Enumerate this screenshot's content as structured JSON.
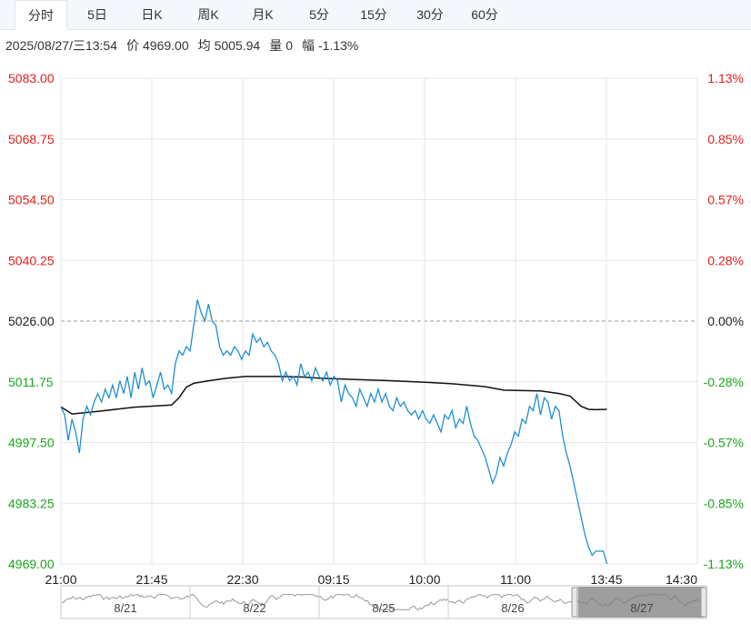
{
  "tabs": [
    {
      "label": "分时",
      "active": true
    },
    {
      "label": "5日",
      "active": false
    },
    {
      "label": "日K",
      "active": false
    },
    {
      "label": "周K",
      "active": false
    },
    {
      "label": "月K",
      "active": false
    },
    {
      "label": "5分",
      "active": false
    },
    {
      "label": "15分",
      "active": false
    },
    {
      "label": "30分",
      "active": false
    },
    {
      "label": "60分",
      "active": false
    }
  ],
  "info": {
    "datetime": "2025/08/27/三13:54",
    "price_label": "价",
    "price": "4969.00",
    "avg_label": "均",
    "avg": "5005.94",
    "vol_label": "量",
    "vol": "0",
    "chg_label": "幅",
    "chg": "-1.13%"
  },
  "colors": {
    "up": "#e0201c",
    "down": "#1aa51a",
    "neutral": "#222222",
    "price_line": "#1f8fd0",
    "avg_line": "#111111",
    "grid": "#e6e6e6"
  },
  "chart_data": {
    "type": "line",
    "prev_close": 5026.0,
    "ylim": [
      4969.0,
      5083.0
    ],
    "y_ticks_left": [
      "5083.00",
      "5068.75",
      "5054.50",
      "5040.25",
      "5026.00",
      "5011.75",
      "4997.50",
      "4983.25",
      "4969.00"
    ],
    "y_ticks_right": [
      "1.13%",
      "0.85%",
      "0.57%",
      "0.28%",
      "0.00%",
      "-0.28%",
      "-0.57%",
      "-0.85%",
      "-1.13%"
    ],
    "x_ticks": [
      "21:00",
      "21:45",
      "22:30",
      "09:15",
      "10:00",
      "11:00",
      "13:45",
      "14:30"
    ],
    "x_total": 345,
    "price_series": [
      [
        0,
        5005.9
      ],
      [
        2,
        5004
      ],
      [
        4,
        4998
      ],
      [
        6,
        5003
      ],
      [
        8,
        5000
      ],
      [
        10,
        4995
      ],
      [
        12,
        5003
      ],
      [
        14,
        5006
      ],
      [
        16,
        5004
      ],
      [
        18,
        5007
      ],
      [
        20,
        5009
      ],
      [
        22,
        5007
      ],
      [
        24,
        5010
      ],
      [
        26,
        5008
      ],
      [
        28,
        5011
      ],
      [
        30,
        5008
      ],
      [
        32,
        5012
      ],
      [
        34,
        5009
      ],
      [
        36,
        5013
      ],
      [
        38,
        5008
      ],
      [
        40,
        5014
      ],
      [
        42,
        5010
      ],
      [
        44,
        5015
      ],
      [
        46,
        5011
      ],
      [
        48,
        5012
      ],
      [
        50,
        5008
      ],
      [
        52,
        5011
      ],
      [
        54,
        5014
      ],
      [
        56,
        5010
      ],
      [
        58,
        5011
      ],
      [
        60,
        5009
      ],
      [
        62,
        5016
      ],
      [
        64,
        5019
      ],
      [
        66,
        5018
      ],
      [
        68,
        5020
      ],
      [
        70,
        5019
      ],
      [
        72,
        5025
      ],
      [
        74,
        5031
      ],
      [
        76,
        5028
      ],
      [
        78,
        5026
      ],
      [
        80,
        5030
      ],
      [
        82,
        5026
      ],
      [
        84,
        5025
      ],
      [
        86,
        5020
      ],
      [
        88,
        5018
      ],
      [
        90,
        5019
      ],
      [
        92,
        5018
      ],
      [
        94,
        5020
      ],
      [
        96,
        5019
      ],
      [
        98,
        5017
      ],
      [
        100,
        5019
      ],
      [
        102,
        5018
      ],
      [
        104,
        5023
      ],
      [
        106,
        5021
      ],
      [
        108,
        5022
      ],
      [
        110,
        5020
      ],
      [
        112,
        5021
      ],
      [
        114,
        5019
      ],
      [
        116,
        5018
      ],
      [
        118,
        5016
      ],
      [
        120,
        5012
      ],
      [
        122,
        5014
      ],
      [
        124,
        5012
      ],
      [
        126,
        5013
      ],
      [
        128,
        5011
      ],
      [
        130,
        5016
      ],
      [
        132,
        5013
      ],
      [
        134,
        5014
      ],
      [
        136,
        5012
      ],
      [
        138,
        5015
      ],
      [
        140,
        5013
      ],
      [
        142,
        5012
      ],
      [
        144,
        5014
      ],
      [
        146,
        5011
      ],
      [
        148,
        5013
      ],
      [
        150,
        5012
      ],
      [
        152,
        5007
      ],
      [
        154,
        5011
      ],
      [
        156,
        5009
      ],
      [
        158,
        5008
      ],
      [
        160,
        5006
      ],
      [
        162,
        5010
      ],
      [
        164,
        5008
      ],
      [
        166,
        5006
      ],
      [
        168,
        5009
      ],
      [
        170,
        5007
      ],
      [
        172,
        5010
      ],
      [
        174,
        5007
      ],
      [
        176,
        5009
      ],
      [
        178,
        5006
      ],
      [
        180,
        5005
      ],
      [
        182,
        5008
      ],
      [
        184,
        5006
      ],
      [
        186,
        5007
      ],
      [
        188,
        5005
      ],
      [
        190,
        5004
      ],
      [
        192,
        5005
      ],
      [
        194,
        5003
      ],
      [
        196,
        5005
      ],
      [
        198,
        5003
      ],
      [
        200,
        5002
      ],
      [
        202,
        5004
      ],
      [
        204,
        5002
      ],
      [
        206,
        5000
      ],
      [
        208,
        5004
      ],
      [
        210,
        5003
      ],
      [
        212,
        5005
      ],
      [
        214,
        5001
      ],
      [
        216,
        5003
      ],
      [
        218,
        5002
      ],
      [
        220,
        5006
      ],
      [
        222,
        5002
      ],
      [
        224,
        4999
      ],
      [
        226,
        4998
      ],
      [
        228,
        4996
      ],
      [
        230,
        4994
      ],
      [
        232,
        4991
      ],
      [
        234,
        4988
      ],
      [
        236,
        4990
      ],
      [
        238,
        4994
      ],
      [
        240,
        4992
      ],
      [
        242,
        4995
      ],
      [
        244,
        4997
      ],
      [
        246,
        5000
      ],
      [
        248,
        4999
      ],
      [
        250,
        5003
      ],
      [
        252,
        5002
      ],
      [
        254,
        5006
      ],
      [
        256,
        5005
      ],
      [
        258,
        5009
      ],
      [
        260,
        5004
      ],
      [
        262,
        5008
      ],
      [
        264,
        5007
      ],
      [
        266,
        5003
      ],
      [
        268,
        5006
      ],
      [
        270,
        5005
      ],
      [
        272,
        4999
      ],
      [
        274,
        4995
      ],
      [
        276,
        4992
      ],
      [
        278,
        4988
      ],
      [
        280,
        4984
      ],
      [
        282,
        4980
      ],
      [
        284,
        4976
      ],
      [
        286,
        4973
      ],
      [
        288,
        4971
      ],
      [
        290,
        4972
      ],
      [
        292,
        4972
      ],
      [
        294,
        4972
      ],
      [
        296,
        4969
      ]
    ],
    "avg_series": [
      [
        0,
        5005.9
      ],
      [
        6,
        5004.2
      ],
      [
        20,
        5004.8
      ],
      [
        40,
        5005.8
      ],
      [
        60,
        5006.3
      ],
      [
        64,
        5008
      ],
      [
        68,
        5010.5
      ],
      [
        72,
        5011.4
      ],
      [
        80,
        5012
      ],
      [
        90,
        5012.6
      ],
      [
        100,
        5013
      ],
      [
        110,
        5013
      ],
      [
        120,
        5013
      ],
      [
        130,
        5012.9
      ],
      [
        140,
        5012.6
      ],
      [
        160,
        5012.3
      ],
      [
        180,
        5012
      ],
      [
        200,
        5011.6
      ],
      [
        212,
        5011.3
      ],
      [
        220,
        5011
      ],
      [
        230,
        5010.6
      ],
      [
        240,
        5009.8
      ],
      [
        250,
        5009.7
      ],
      [
        260,
        5009.6
      ],
      [
        270,
        5009
      ],
      [
        276,
        5008.4
      ],
      [
        282,
        5006
      ],
      [
        286,
        5005.3
      ],
      [
        290,
        5005.2
      ],
      [
        296,
        5005.3
      ]
    ],
    "navigator_labels": [
      "8/21",
      "8/22",
      "8/25",
      "8/26",
      "8/27"
    ]
  }
}
